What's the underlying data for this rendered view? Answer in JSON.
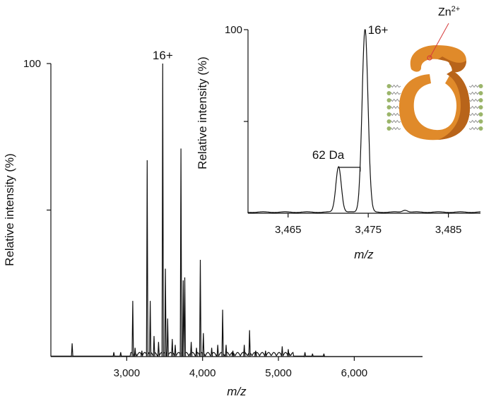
{
  "chart_data": [
    {
      "type": "line",
      "title": "",
      "xlabel": "m/z",
      "ylabel": "Relative intensity (%)",
      "xlim": [
        2000,
        6900
      ],
      "ylim": [
        0,
        100
      ],
      "x_ticks": [
        {
          "value": 3000,
          "label": "3,000"
        },
        {
          "value": 4000,
          "label": "4,000"
        },
        {
          "value": 5000,
          "label": "5,000"
        },
        {
          "value": 6000,
          "label": "6,000"
        }
      ],
      "y_ticks": [
        {
          "value": 100,
          "label": "100"
        },
        {
          "value": 50,
          "label": ""
        }
      ],
      "peaks": [
        {
          "x": 2280,
          "y": 4.5
        },
        {
          "x": 2830,
          "y": 1.5
        },
        {
          "x": 2920,
          "y": 1.5
        },
        {
          "x": 3080,
          "y": 19
        },
        {
          "x": 3110,
          "y": 3
        },
        {
          "x": 3200,
          "y": 2
        },
        {
          "x": 3270,
          "y": 67
        },
        {
          "x": 3310,
          "y": 19
        },
        {
          "x": 3360,
          "y": 7
        },
        {
          "x": 3420,
          "y": 5
        },
        {
          "x": 3475,
          "y": 100
        },
        {
          "x": 3510,
          "y": 30
        },
        {
          "x": 3540,
          "y": 13
        },
        {
          "x": 3600,
          "y": 6
        },
        {
          "x": 3640,
          "y": 4
        },
        {
          "x": 3715,
          "y": 71
        },
        {
          "x": 3745,
          "y": 26
        },
        {
          "x": 3765,
          "y": 27
        },
        {
          "x": 3850,
          "y": 5
        },
        {
          "x": 3920,
          "y": 3
        },
        {
          "x": 3970,
          "y": 33
        },
        {
          "x": 4010,
          "y": 8
        },
        {
          "x": 4120,
          "y": 3
        },
        {
          "x": 4200,
          "y": 4
        },
        {
          "x": 4265,
          "y": 16
        },
        {
          "x": 4310,
          "y": 4
        },
        {
          "x": 4400,
          "y": 2
        },
        {
          "x": 4550,
          "y": 4
        },
        {
          "x": 4620,
          "y": 9
        },
        {
          "x": 4700,
          "y": 2
        },
        {
          "x": 4830,
          "y": 2
        },
        {
          "x": 5050,
          "y": 3.5
        },
        {
          "x": 5130,
          "y": 2.5
        },
        {
          "x": 5350,
          "y": 1.5
        },
        {
          "x": 5450,
          "y": 1
        },
        {
          "x": 5600,
          "y": 1
        }
      ],
      "annotations": [
        {
          "x": 3475,
          "y": 100,
          "text": "16+"
        }
      ]
    },
    {
      "type": "line",
      "title": "",
      "xlabel": "m/z",
      "ylabel": "Relative intensity (%)",
      "xlim": [
        3460,
        3489
      ],
      "ylim": [
        0,
        100
      ],
      "x_ticks": [
        {
          "value": 3465,
          "label": "3,465"
        },
        {
          "value": 3475,
          "label": "3,475"
        },
        {
          "value": 3485,
          "label": "3,485"
        }
      ],
      "y_ticks": [
        {
          "value": 100,
          "label": "100"
        },
        {
          "value": 50,
          "label": ""
        }
      ],
      "peaks": [
        {
          "x": 3471.3,
          "y": 25,
          "width": 0.5
        },
        {
          "x": 3474.6,
          "y": 100,
          "width": 0.55
        }
      ],
      "annotations": [
        {
          "x": 3474.6,
          "y": 100,
          "text": "16+"
        },
        {
          "x": 3472.9,
          "y": 25,
          "text": "62 Da"
        }
      ]
    }
  ],
  "illustration": {
    "ion_label": "Zn",
    "ion_charge": "2+",
    "body_color": "#e08a2a",
    "body_dark_color": "#b8641a",
    "lipid_head_color": "#9bb56a",
    "ion_color": "#d63a3a"
  }
}
